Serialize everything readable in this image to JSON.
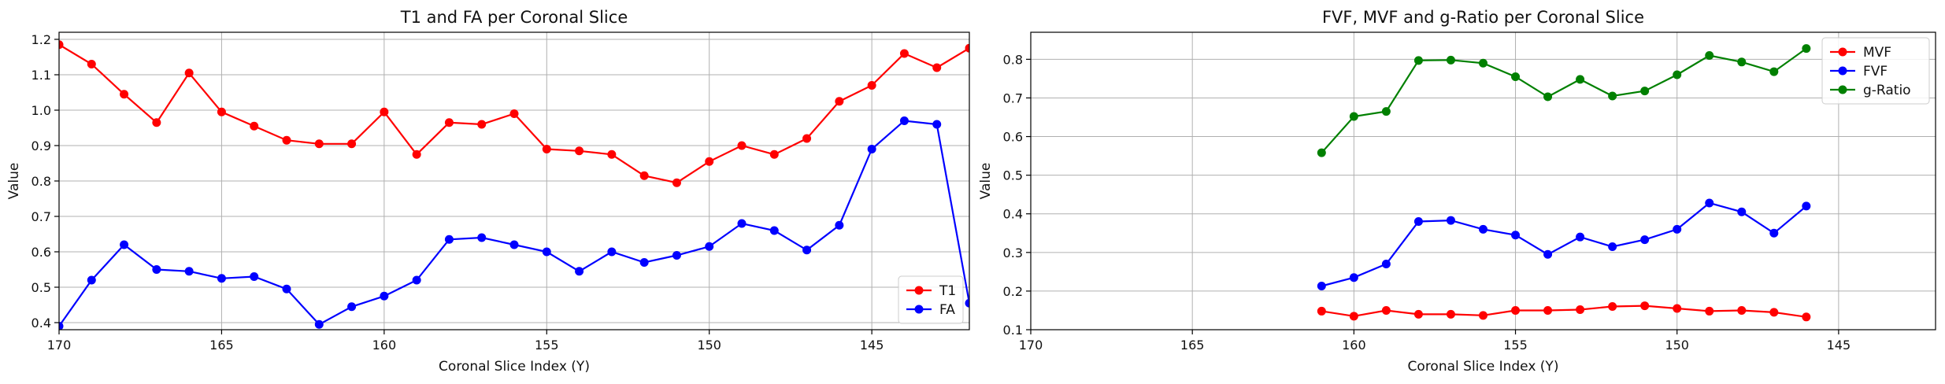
{
  "chart_data": [
    {
      "type": "line",
      "title": "T1 and FA per Coronal Slice",
      "xlabel": "Coronal Slice Index (Y)",
      "ylabel": "Value",
      "xlim": [
        170,
        142
      ],
      "ylim": [
        0.38,
        1.22
      ],
      "xticks": [
        170,
        165,
        160,
        155,
        150,
        145
      ],
      "yticks": [
        0.4,
        0.5,
        0.6,
        0.7,
        0.8,
        0.9,
        1.0,
        1.1,
        1.2
      ],
      "ytick_labels": [
        "0.4",
        "0.5",
        "0.6",
        "0.7",
        "0.8",
        "0.9",
        "1.0",
        "1.1",
        "1.2"
      ],
      "grid": true,
      "legend": "lower-right",
      "x": [
        170,
        169,
        168,
        167,
        166,
        165,
        164,
        163,
        162,
        161,
        160,
        159,
        158,
        157,
        156,
        155,
        154,
        153,
        152,
        151,
        150,
        149,
        148,
        147,
        146,
        145,
        144,
        143,
        142
      ],
      "series": [
        {
          "name": "T1",
          "color": "#ff0000",
          "values": [
            1.185,
            1.13,
            1.045,
            0.965,
            1.105,
            0.995,
            0.955,
            0.915,
            0.905,
            0.905,
            0.995,
            0.875,
            0.965,
            0.96,
            0.99,
            0.89,
            0.885,
            0.875,
            0.815,
            0.795,
            0.855,
            0.9,
            0.875,
            0.92,
            1.025,
            1.07,
            1.16,
            1.12,
            1.175
          ]
        },
        {
          "name": "FA",
          "color": "#0000ff",
          "values": [
            0.39,
            0.52,
            0.62,
            0.55,
            0.545,
            0.525,
            0.53,
            0.495,
            0.395,
            0.445,
            0.475,
            0.52,
            0.635,
            0.64,
            0.62,
            0.6,
            0.545,
            0.6,
            0.57,
            0.59,
            0.615,
            0.68,
            0.66,
            0.605,
            0.675,
            0.89,
            0.97,
            0.96,
            0.455
          ]
        }
      ]
    },
    {
      "type": "line",
      "title": "FVF, MVF and g-Ratio per Coronal Slice",
      "xlabel": "Coronal Slice Index (Y)",
      "ylabel": "Value",
      "xlim": [
        170,
        142
      ],
      "ylim": [
        0.1,
        0.87
      ],
      "xticks": [
        170,
        165,
        160,
        155,
        150,
        145
      ],
      "yticks": [
        0.1,
        0.2,
        0.3,
        0.4,
        0.5,
        0.6,
        0.7,
        0.8
      ],
      "ytick_labels": [
        "0.1",
        "0.2",
        "0.3",
        "0.4",
        "0.5",
        "0.6",
        "0.7",
        "0.8"
      ],
      "grid": true,
      "legend": "upper-right",
      "x": [
        161,
        160,
        159,
        158,
        157,
        156,
        155,
        154,
        153,
        152,
        151,
        150,
        149,
        148,
        147,
        146
      ],
      "series": [
        {
          "name": "MVF",
          "color": "#ff0000",
          "values": [
            0.148,
            0.135,
            0.15,
            0.14,
            0.14,
            0.137,
            0.15,
            0.15,
            0.152,
            0.16,
            0.162,
            0.155,
            0.148,
            0.15,
            0.145,
            0.133
          ]
        },
        {
          "name": "FVF",
          "color": "#0000ff",
          "values": [
            0.213,
            0.235,
            0.27,
            0.38,
            0.383,
            0.36,
            0.345,
            0.295,
            0.34,
            0.315,
            0.333,
            0.36,
            0.428,
            0.405,
            0.35,
            0.42
          ]
        },
        {
          "name": "g-Ratio",
          "color": "#008000",
          "values": [
            0.558,
            0.652,
            0.665,
            0.797,
            0.798,
            0.79,
            0.755,
            0.703,
            0.748,
            0.705,
            0.718,
            0.76,
            0.81,
            0.793,
            0.768,
            0.828
          ]
        }
      ]
    }
  ]
}
